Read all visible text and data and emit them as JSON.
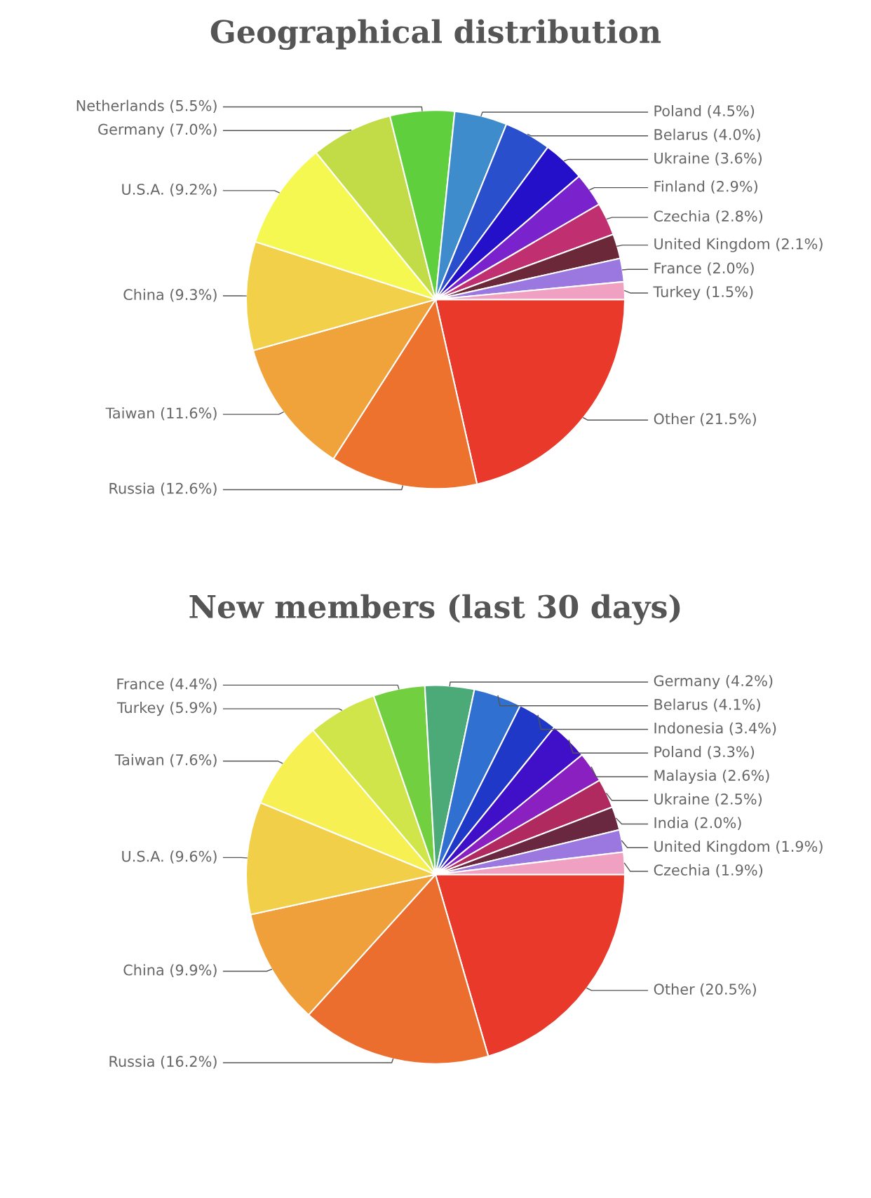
{
  "chart_data": [
    {
      "type": "pie",
      "title": "Geographical distribution",
      "categories": [
        "Other (21.5%)",
        "Russia (12.6%)",
        "Taiwan (11.6%)",
        "China (9.3%)",
        "U.S.A. (9.2%)",
        "Germany (7.0%)",
        "Netherlands (5.5%)",
        "Poland (4.5%)",
        "Belarus (4.0%)",
        "Ukraine (3.6%)",
        "Finland (2.9%)",
        "Czechia (2.8%)",
        "United Kingdom (2.1%)",
        "France (2.0%)",
        "Turkey (1.5%)"
      ],
      "values": [
        21.5,
        12.6,
        11.6,
        9.3,
        9.2,
        7.0,
        5.5,
        4.5,
        4.0,
        3.6,
        2.9,
        2.8,
        2.1,
        2.0,
        1.5
      ],
      "colors": [
        "#e8392a",
        "#ec722e",
        "#f0a33a",
        "#f2d04a",
        "#f6f852",
        "#c2dc48",
        "#5fcf3e",
        "#3f8ccc",
        "#2a4fcc",
        "#2410c8",
        "#7a22cc",
        "#c03070",
        "#6a2838",
        "#9b78e0",
        "#f0a0c0"
      ],
      "legend": false
    },
    {
      "type": "pie",
      "title": "New members (last 30 days)",
      "categories": [
        "Other (20.5%)",
        "Russia (16.2%)",
        "China (9.9%)",
        "U.S.A. (9.6%)",
        "Taiwan (7.6%)",
        "Turkey (5.9%)",
        "France (4.4%)",
        "Germany (4.2%)",
        "Belarus (4.1%)",
        "Indonesia (3.4%)",
        "Poland (3.3%)",
        "Malaysia (2.6%)",
        "Ukraine (2.5%)",
        "India (2.0%)",
        "United Kingdom (1.9%)",
        "Czechia (1.9%)"
      ],
      "values": [
        20.5,
        16.2,
        9.9,
        9.6,
        7.6,
        5.9,
        4.4,
        4.2,
        4.1,
        3.4,
        3.3,
        2.6,
        2.5,
        2.0,
        1.9,
        1.9
      ],
      "colors": [
        "#e8392a",
        "#ec6e2e",
        "#f0a03a",
        "#f2cf48",
        "#f6f052",
        "#cfe54a",
        "#72d040",
        "#4caa78",
        "#3070d0",
        "#2038c8",
        "#4010c8",
        "#8a20c0",
        "#b02a60",
        "#6a2840",
        "#9b78e0",
        "#f0a0c0"
      ],
      "legend": false
    }
  ]
}
